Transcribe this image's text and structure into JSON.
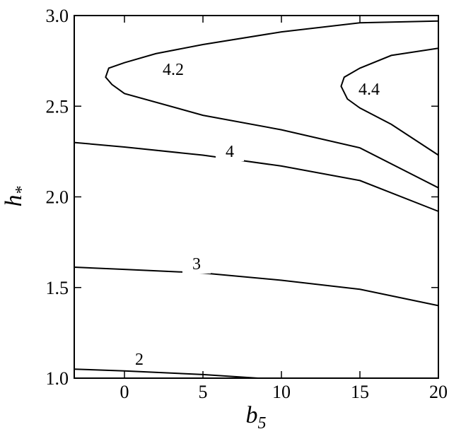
{
  "chart_data": {
    "type": "contour",
    "x_label": {
      "text": "b",
      "subscript": "5"
    },
    "y_label": {
      "text": "h",
      "subscript": "*"
    },
    "xlim": [
      -3.2,
      20
    ],
    "ylim": [
      1.0,
      3.0
    ],
    "xticks": [
      0,
      5,
      10,
      15,
      20
    ],
    "yticks": [
      {
        "value": 1.0,
        "label": "1.0"
      },
      {
        "value": 1.5,
        "label": "1.5"
      },
      {
        "value": 2.0,
        "label": "2.0"
      },
      {
        "value": 2.5,
        "label": "2.5"
      },
      {
        "value": 3.0,
        "label": "3.0"
      }
    ],
    "series": [
      {
        "name": "2",
        "color": "#000000",
        "x": [
          -3.2,
          0,
          5,
          8.5
        ],
        "y": [
          1.05,
          1.04,
          1.02,
          1.0
        ]
      },
      {
        "name": "3",
        "color": "#000000",
        "x": [
          -3.2,
          0,
          5,
          10,
          15,
          20
        ],
        "y": [
          1.612,
          1.6,
          1.58,
          1.54,
          1.49,
          1.4
        ]
      },
      {
        "name": "4",
        "color": "#000000",
        "x": [
          -3.2,
          0,
          5,
          10,
          15,
          20
        ],
        "y": [
          2.3,
          2.275,
          2.23,
          2.17,
          2.09,
          1.92
        ]
      },
      {
        "name": "4.2",
        "color": "#000000",
        "x": [
          20,
          15,
          10,
          5,
          2,
          0,
          -1,
          -1.2,
          -0.8,
          0,
          5,
          10,
          15,
          20
        ],
        "y": [
          2.97,
          2.96,
          2.91,
          2.84,
          2.79,
          2.74,
          2.71,
          2.66,
          2.62,
          2.57,
          2.45,
          2.37,
          2.27,
          2.05
        ]
      },
      {
        "name": "4.4",
        "color": "#000000",
        "x": [
          20,
          17,
          15,
          14,
          13.8,
          14.2,
          15,
          17,
          20
        ],
        "y": [
          2.82,
          2.78,
          2.71,
          2.66,
          2.61,
          2.54,
          2.49,
          2.4,
          2.23
        ]
      }
    ]
  }
}
